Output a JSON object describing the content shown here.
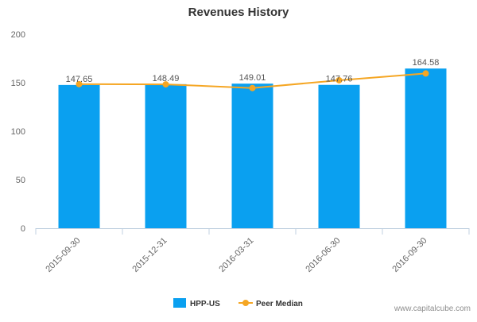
{
  "chart_data": {
    "type": "bar",
    "title": "Revenues History",
    "categories": [
      "2015-09-30",
      "2015-12-31",
      "2016-03-31",
      "2016-06-30",
      "2016-09-30"
    ],
    "series": [
      {
        "name": "HPP-US",
        "type": "bar",
        "color": "#0aa0f0",
        "values": [
          147.65,
          148.49,
          149.01,
          147.76,
          164.58
        ]
      },
      {
        "name": "Peer Median",
        "type": "line",
        "color": "#f5a623",
        "values": [
          148.5,
          148.3,
          144.5,
          152.5,
          159.5
        ]
      }
    ],
    "data_labels": [
      "147.65",
      "148.49",
      "149.01",
      "147.76",
      "164.58"
    ],
    "yticks": [
      0,
      50,
      100,
      150,
      200
    ],
    "ylim": [
      0,
      200
    ],
    "xlabel": "",
    "ylabel": "",
    "grid": false,
    "legend": "bottom-center"
  },
  "credit": "www.capitalcube.com"
}
